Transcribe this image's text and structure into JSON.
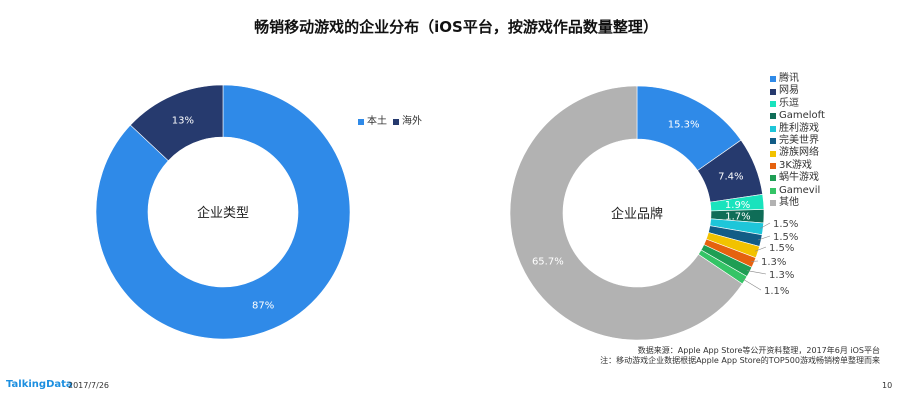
{
  "title": "畅销移动游戏的企业分布（iOS平台，按游戏作品数量整理）",
  "chart_data": [
    {
      "type": "pie",
      "center_label": "企业类型",
      "categories": [
        "本土",
        "海外"
      ],
      "values": [
        87,
        13
      ],
      "value_labels": [
        "87%",
        "13%"
      ],
      "colors": [
        "#2f8ae8",
        "#263a6e"
      ],
      "legend_position": "right"
    },
    {
      "type": "pie",
      "center_label": "企业品牌",
      "categories": [
        "腾讯",
        "网易",
        "乐逗",
        "Gameloft",
        "胜利游戏",
        "完美世界",
        "游族网络",
        "3K游戏",
        "蜗牛游戏",
        "Gamevil",
        "其他"
      ],
      "values": [
        15.3,
        7.4,
        1.9,
        1.7,
        1.5,
        1.5,
        1.5,
        1.3,
        1.3,
        1.1,
        65.7
      ],
      "value_labels": [
        "15.3%",
        "7.4%",
        "1.9%",
        "1.7%",
        "1.5%",
        "1.5%",
        "1.5%",
        "1.3%",
        "1.3%",
        "1.1%",
        "65.7%"
      ],
      "colors": [
        "#2f8ae8",
        "#263a6e",
        "#19e3bd",
        "#0f6d57",
        "#1ec6d9",
        "#125c86",
        "#f2c200",
        "#e5620f",
        "#1e9e54",
        "#34c466",
        "#b2b2b2"
      ],
      "legend_position": "right"
    }
  ],
  "source_text": "数据来源：Apple App Store等公开资料整理，2017年6月 iOS平台",
  "note_text": "注：移动游戏企业数据根据Apple App Store的TOP500游戏畅销榜单整理而来",
  "footer": {
    "brand": "TalkingData",
    "date": "2017/7/26",
    "page": "10"
  }
}
